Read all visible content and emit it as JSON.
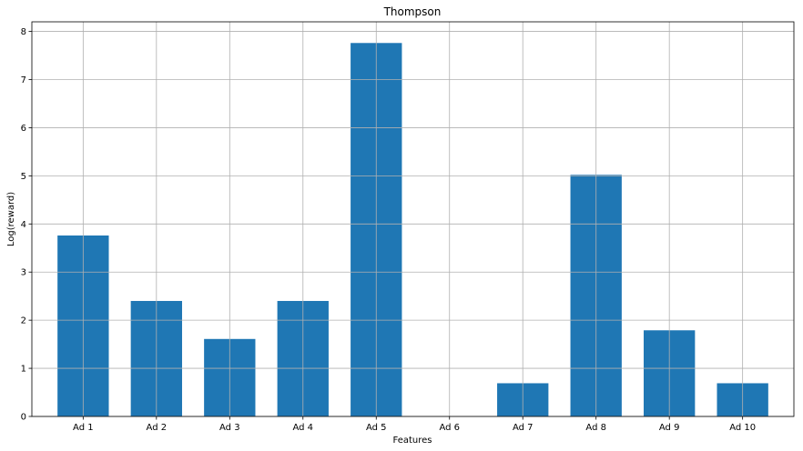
{
  "chart_data": {
    "type": "bar",
    "title": "Thompson",
    "xlabel": "Features",
    "ylabel": "Log(reward)",
    "categories": [
      "Ad 1",
      "Ad 2",
      "Ad 3",
      "Ad 4",
      "Ad 5",
      "Ad 6",
      "Ad 7",
      "Ad 8",
      "Ad 9",
      "Ad 10"
    ],
    "values": [
      3.76,
      2.4,
      1.61,
      2.4,
      7.76,
      0.0,
      0.69,
      5.02,
      1.79,
      0.69
    ],
    "ylim": [
      0,
      8.2
    ],
    "yticks": [
      0,
      1,
      2,
      3,
      4,
      5,
      6,
      7,
      8
    ],
    "bar_color": "#1f77b4",
    "grid": true,
    "legend": "none"
  }
}
